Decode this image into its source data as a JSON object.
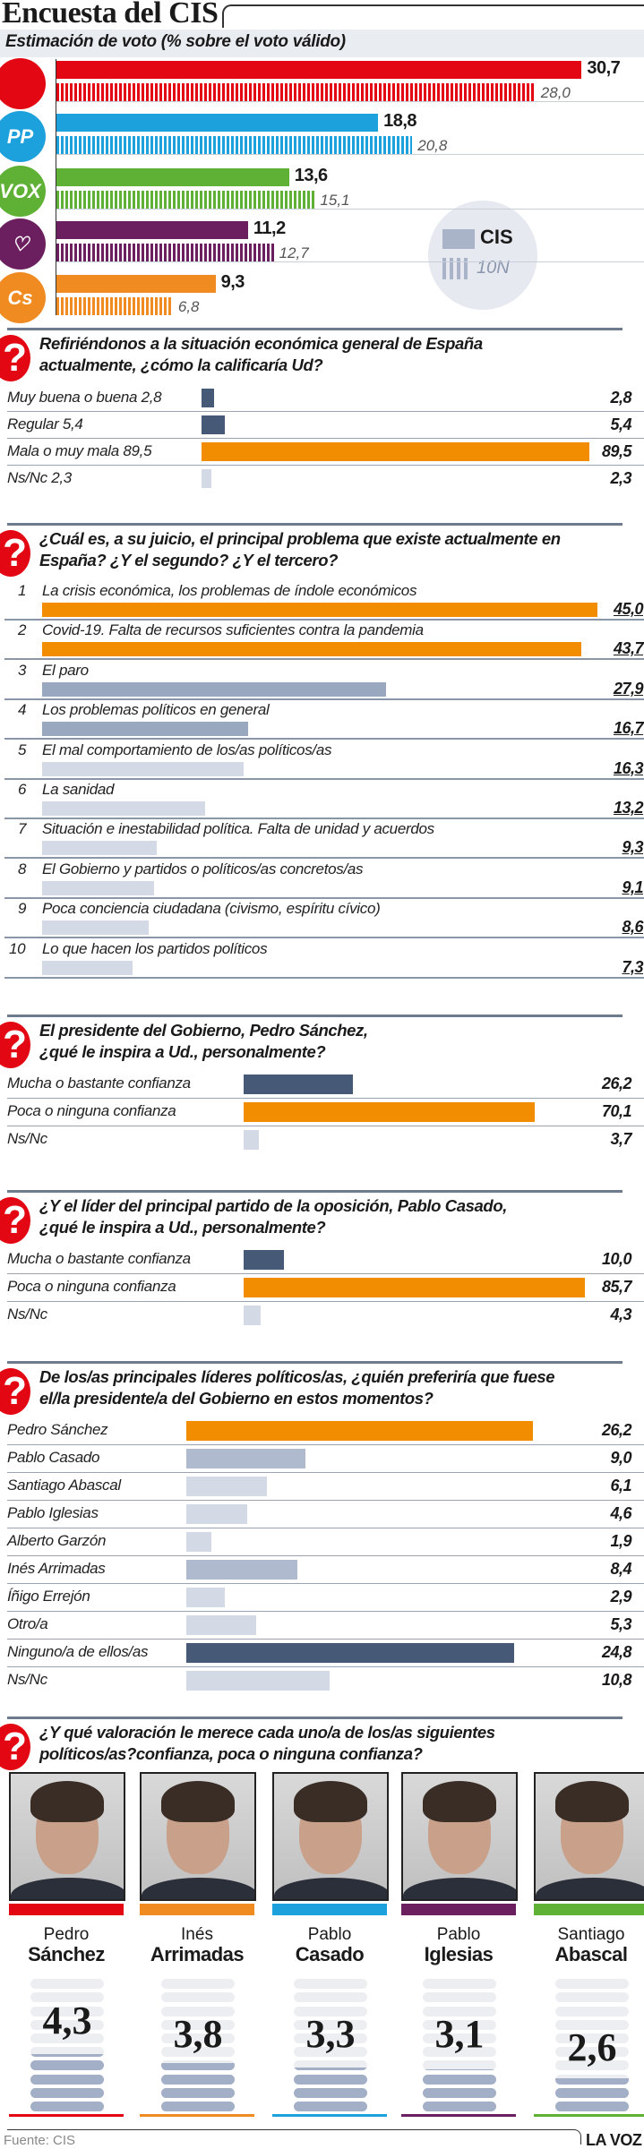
{
  "header": {
    "title": "Encuesta del CIS",
    "subtitle": "Estimación de voto (% sobre el voto válido)"
  },
  "chart_data": [
    {
      "type": "bar",
      "title": "Estimación de voto (% sobre el voto válido)",
      "legend": {
        "position": "bottom-right",
        "entries": [
          "CIS",
          "10N"
        ]
      },
      "series_names": [
        "CIS",
        "10N"
      ],
      "parties": [
        {
          "logo": "psoe-logo",
          "logo_text": "",
          "color": "#e30613",
          "values": [
            30.7,
            28.0
          ]
        },
        {
          "logo": "pp-logo",
          "logo_text": "PP",
          "color": "#1da1dc",
          "values": [
            18.8,
            20.8
          ]
        },
        {
          "logo": "vox-logo",
          "logo_text": "VOX",
          "color": "#5fb135",
          "values": [
            13.6,
            15.1
          ]
        },
        {
          "logo": "podemos-logo",
          "logo_text": "♡",
          "color": "#6b1f5f",
          "values": [
            11.2,
            12.7
          ]
        },
        {
          "logo": "cs-logo",
          "logo_text": "Cs",
          "color": "#f08b22",
          "values": [
            9.3,
            6.8
          ]
        }
      ]
    },
    {
      "type": "bar",
      "question": [
        "Refiriéndonos a la situación económica general de España",
        "actualmente, ¿cómo la calificaría Ud?"
      ],
      "rows": [
        {
          "label": "Muy buena o buena 2,8",
          "value": 2.8,
          "color": "#465a78"
        },
        {
          "label": "Regular 5,4",
          "value": 5.4,
          "color": "#465a78"
        },
        {
          "label": "Mala o muy mala 89,5",
          "value": 89.5,
          "color": "#f28c00"
        },
        {
          "label": "Ns/Nc 2,3",
          "value": 2.3,
          "color": "#d3dae6"
        }
      ]
    },
    {
      "type": "bar",
      "question": [
        "¿Cuál es, a su juicio, el principal problema que existe actualmente en",
        "España? ¿Y el segundo? ¿Y el tercero?"
      ],
      "rows": [
        {
          "rank": "1",
          "label": "La crisis económica, los problemas de índole económicos",
          "value": 45.0,
          "color": "#f28c00"
        },
        {
          "rank": "2",
          "label": "Covid-19. Falta de recursos suficientes contra la pandemia",
          "value": 43.7,
          "color": "#f28c00"
        },
        {
          "rank": "3",
          "label": "El paro",
          "value": 27.9,
          "color": "#9aa8bf"
        },
        {
          "rank": "4",
          "label": "Los problemas políticos en general",
          "value": 16.7,
          "color": "#9aa8bf"
        },
        {
          "rank": "5",
          "label": "El mal comportamiento de los/as políticos/as",
          "value": 16.3,
          "color": "#d3dae6"
        },
        {
          "rank": "6",
          "label": "La sanidad",
          "value": 13.2,
          "color": "#d3dae6"
        },
        {
          "rank": "7",
          "label": "Situación e inestabilidad política. Falta de unidad y acuerdos",
          "value": 9.3,
          "color": "#d3dae6"
        },
        {
          "rank": "8",
          "label": "El Gobierno y partidos o políticos/as concretos/as",
          "value": 9.1,
          "color": "#d3dae6"
        },
        {
          "rank": "9",
          "label": "Poca conciencia ciudadana (civismo, espíritu cívico)",
          "value": 8.6,
          "color": "#d3dae6"
        },
        {
          "rank": "10",
          "label": "Lo que hacen los partidos políticos",
          "value": 7.3,
          "color": "#d3dae6"
        }
      ]
    },
    {
      "type": "bar",
      "question": [
        "El presidente del Gobierno, Pedro Sánchez,",
        "¿qué le inspira a Ud., personalmente?"
      ],
      "rows": [
        {
          "label": "Mucha o bastante confianza",
          "value": 26.2,
          "color": "#465a78"
        },
        {
          "label": "Poca o ninguna confianza",
          "value": 70.1,
          "color": "#f28c00"
        },
        {
          "label": "Ns/Nc",
          "value": 3.7,
          "color": "#d3dae6"
        }
      ]
    },
    {
      "type": "bar",
      "question": [
        "¿Y el líder del principal partido de la oposición, Pablo Casado,",
        "¿qué le inspira a Ud., personalmente?"
      ],
      "rows": [
        {
          "label": "Mucha o bastante confianza",
          "value": 10.0,
          "color": "#465a78"
        },
        {
          "label": "Poca o ninguna confianza",
          "value": 85.7,
          "color": "#f28c00"
        },
        {
          "label": "Ns/Nc",
          "value": 4.3,
          "color": "#d3dae6"
        }
      ]
    },
    {
      "type": "bar",
      "question": [
        "De los/as principales líderes políticos/as, ¿quién preferiría que fuese",
        "el/la presidente/a del Gobierno en estos momentos?"
      ],
      "rows": [
        {
          "label": "Pedro Sánchez",
          "value": 26.2,
          "color": "#f28c00"
        },
        {
          "label": "Pablo Casado",
          "value": 9.0,
          "color": "#b0bacf"
        },
        {
          "label": "Santiago Abascal",
          "value": 6.1,
          "color": "#d3dae6"
        },
        {
          "label": "Pablo Iglesias",
          "value": 4.6,
          "color": "#d3dae6"
        },
        {
          "label": "Alberto Garzón",
          "value": 1.9,
          "color": "#d3dae6"
        },
        {
          "label": "Inés Arrimadas",
          "value": 8.4,
          "color": "#b0bacf"
        },
        {
          "label": "Íñigo Errejón",
          "value": 2.9,
          "color": "#d3dae6"
        },
        {
          "label": "Otro/a",
          "value": 5.3,
          "color": "#d3dae6"
        },
        {
          "label": "Ninguno/a de ellos/as",
          "value": 24.8,
          "color": "#465a78"
        },
        {
          "label": "Ns/Nc",
          "value": 10.8,
          "color": "#d3dae6"
        }
      ]
    },
    {
      "type": "bar",
      "question": [
        "¿Y qué valoración le merece cada uno/a de los/as siguientes",
        "políticos/as?confianza, poca o ninguna confianza?"
      ],
      "scale_max": 10,
      "leaders": [
        {
          "first": "Pedro",
          "last": "Sánchez",
          "score": 4.3,
          "color": "#e30613"
        },
        {
          "first": "Inés",
          "last": "Arrimadas",
          "score": 3.8,
          "color": "#f08b22"
        },
        {
          "first": "Pablo",
          "last": "Casado",
          "score": 3.3,
          "color": "#1da1dc"
        },
        {
          "first": "Pablo",
          "last": "Iglesias",
          "score": 3.1,
          "color": "#6b1f5f"
        },
        {
          "first": "Santiago",
          "last": "Abascal",
          "score": 2.6,
          "color": "#5fb135"
        }
      ]
    }
  ],
  "footer": {
    "source": "Fuente: CIS",
    "brand": "LA VOZ"
  }
}
